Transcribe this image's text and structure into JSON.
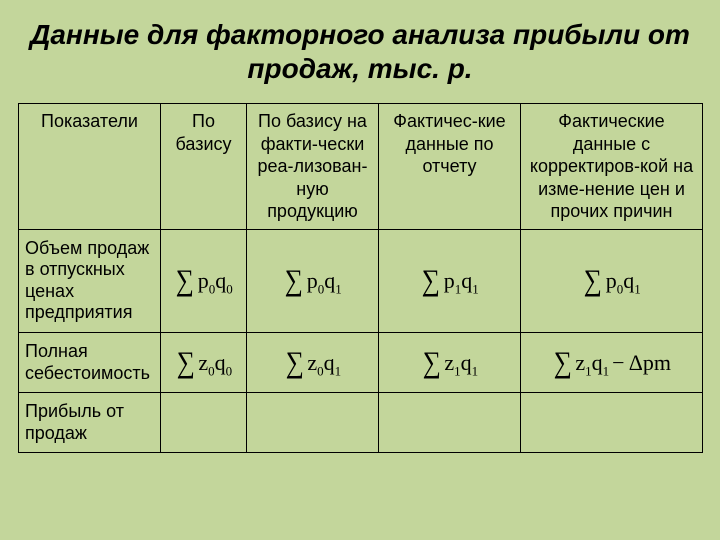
{
  "title": "Данные для факторного анализа прибыли от продаж, тыс. р.",
  "table": {
    "background_color": "#c3d69b",
    "border_color": "#000000",
    "header": {
      "c0": "Показатели",
      "c1": "По базису",
      "c2": "По базису на факти-чески реа-лизован-ную продукцию",
      "c3": "Фактичес-кие данные по отчету",
      "c4": "Фактические данные с корректиров-кой на   изме-нение  цен и прочих причин"
    },
    "rows": [
      {
        "label": "Объем продаж в отпускных ценах предприятия",
        "cells": [
          {
            "sigma": true,
            "var": "p",
            "sub1": "0",
            "var2": "q",
            "sub2": "0"
          },
          {
            "sigma": true,
            "var": "p",
            "sub1": "0",
            "var2": "q",
            "sub2": "1"
          },
          {
            "sigma": true,
            "var": "p",
            "sub1": "1",
            "var2": "q",
            "sub2": "1"
          },
          {
            "sigma": true,
            "var": "p",
            "sub1": "0",
            "var2": "q",
            "sub2": "1"
          }
        ]
      },
      {
        "label": "Полная себестоимость",
        "cells": [
          {
            "sigma": true,
            "var": "z",
            "sub1": "0",
            "var2": "q",
            "sub2": "0"
          },
          {
            "sigma": true,
            "var": "z",
            "sub1": "0",
            "var2": "q",
            "sub2": "1"
          },
          {
            "sigma": true,
            "var": "z",
            "sub1": "1",
            "var2": "q",
            "sub2": "1"
          },
          {
            "sigma": true,
            "var": "z",
            "sub1": "1",
            "var2": "q",
            "sub2": "1",
            "tail": " − Δpm"
          }
        ]
      },
      {
        "label": "Прибыль от продаж",
        "cells": [
          {
            "empty": true
          },
          {
            "empty": true
          },
          {
            "empty": true
          },
          {
            "empty": true
          }
        ]
      }
    ]
  },
  "style": {
    "title_fontsize": 28,
    "title_italic": true,
    "title_bold": true,
    "cell_fontsize": 18,
    "formula_font": "Times New Roman",
    "sigma_fontsize": 30,
    "term_fontsize": 22
  }
}
